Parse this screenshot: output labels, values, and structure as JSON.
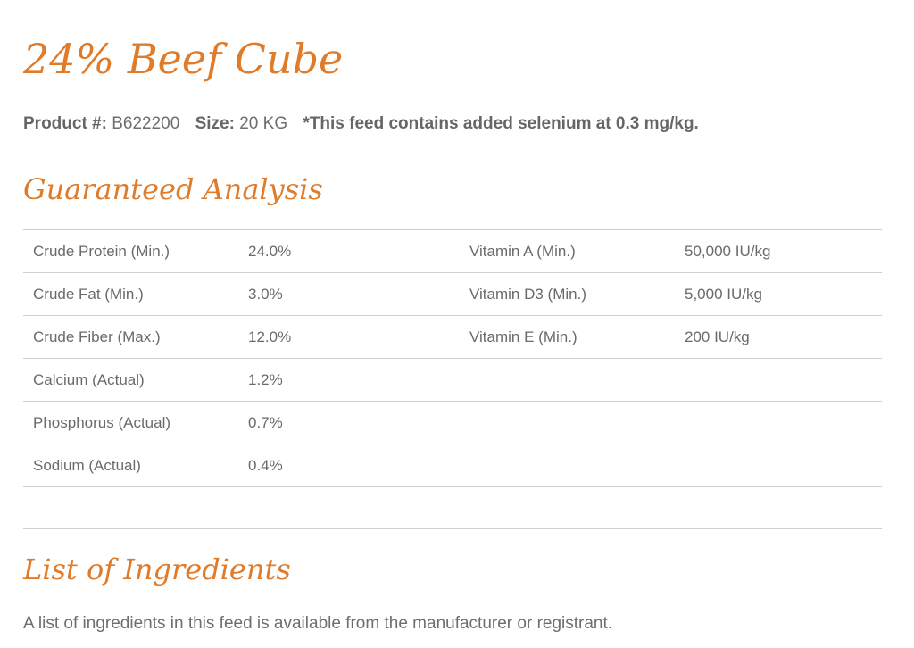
{
  "product": {
    "title": "24% Beef Cube",
    "number_label": "Product #:",
    "number_value": "B622200",
    "size_label": "Size:",
    "size_value": "20 KG",
    "note": "*This feed contains added selenium at 0.3 mg/kg."
  },
  "analysis": {
    "heading": "Guaranteed Analysis",
    "rows": [
      {
        "name": "Crude Protein (Min.)",
        "value": "24.0%",
        "name2": "Vitamin A (Min.)",
        "value2": "50,000 IU/kg"
      },
      {
        "name": "Crude Fat (Min.)",
        "value": "3.0%",
        "name2": "Vitamin D3 (Min.)",
        "value2": "5,000 IU/kg"
      },
      {
        "name": "Crude Fiber (Max.)",
        "value": "12.0%",
        "name2": "Vitamin E (Min.)",
        "value2": "200 IU/kg"
      },
      {
        "name": "Calcium (Actual)",
        "value": "1.2%",
        "name2": "",
        "value2": ""
      },
      {
        "name": "Phosphorus (Actual)",
        "value": "0.7%",
        "name2": "",
        "value2": ""
      },
      {
        "name": "Sodium (Actual)",
        "value": "0.4%",
        "name2": "",
        "value2": ""
      }
    ]
  },
  "ingredients": {
    "heading": "List of Ingredients",
    "text": "A list of ingredients in this feed is available from the manufacturer or registrant."
  },
  "colors": {
    "accent": "#e07b2a",
    "text": "#6a6a6a",
    "rule": "#cfcfcf"
  }
}
